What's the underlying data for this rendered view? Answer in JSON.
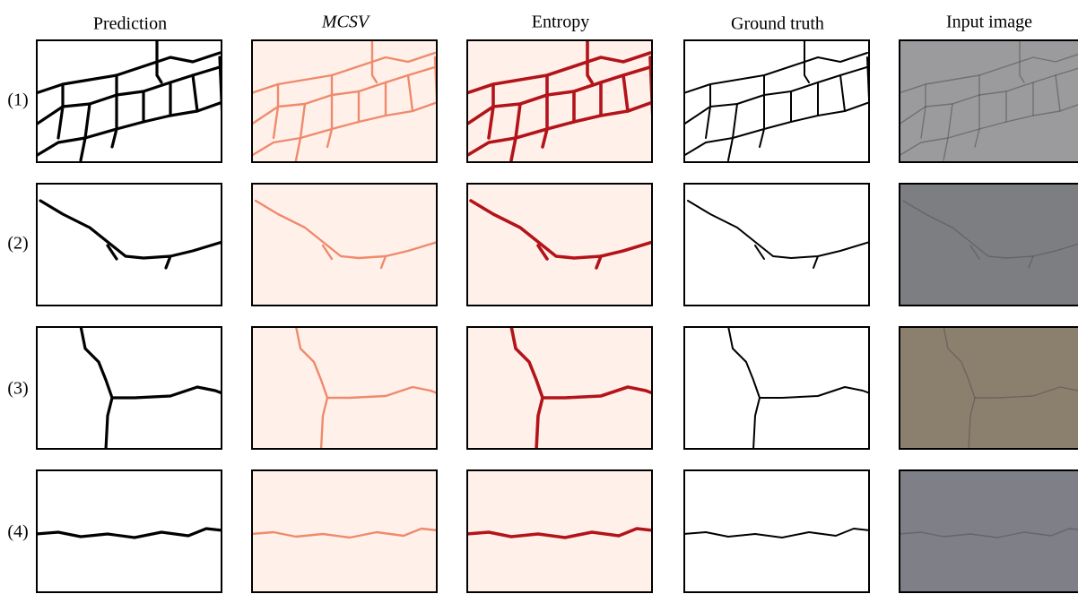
{
  "columns": [
    "Prediction",
    "MCSV",
    "Entropy",
    "Ground truth",
    "Input image"
  ],
  "rows": [
    "(1)",
    "(2)",
    "(3)",
    "(4)"
  ]
}
